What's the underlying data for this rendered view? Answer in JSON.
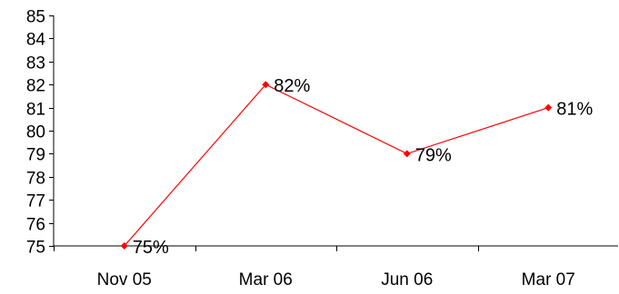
{
  "chart_data": {
    "type": "line",
    "title": "",
    "xlabel": "",
    "ylabel": "",
    "categories": [
      "Nov 05",
      "Mar 06",
      "Jun 06",
      "Mar 07"
    ],
    "series": [
      {
        "values": [
          75,
          82,
          79,
          81
        ],
        "data_labels": [
          "75%",
          "82%",
          "79%",
          "81%"
        ],
        "color": "#ff0000",
        "marker": "diamond"
      }
    ],
    "ylim": [
      75,
      85
    ],
    "yticks": [
      "75",
      "76",
      "77",
      "78",
      "79",
      "80",
      "81",
      "82",
      "83",
      "84",
      "85"
    ],
    "grid": false,
    "legend": "none"
  }
}
